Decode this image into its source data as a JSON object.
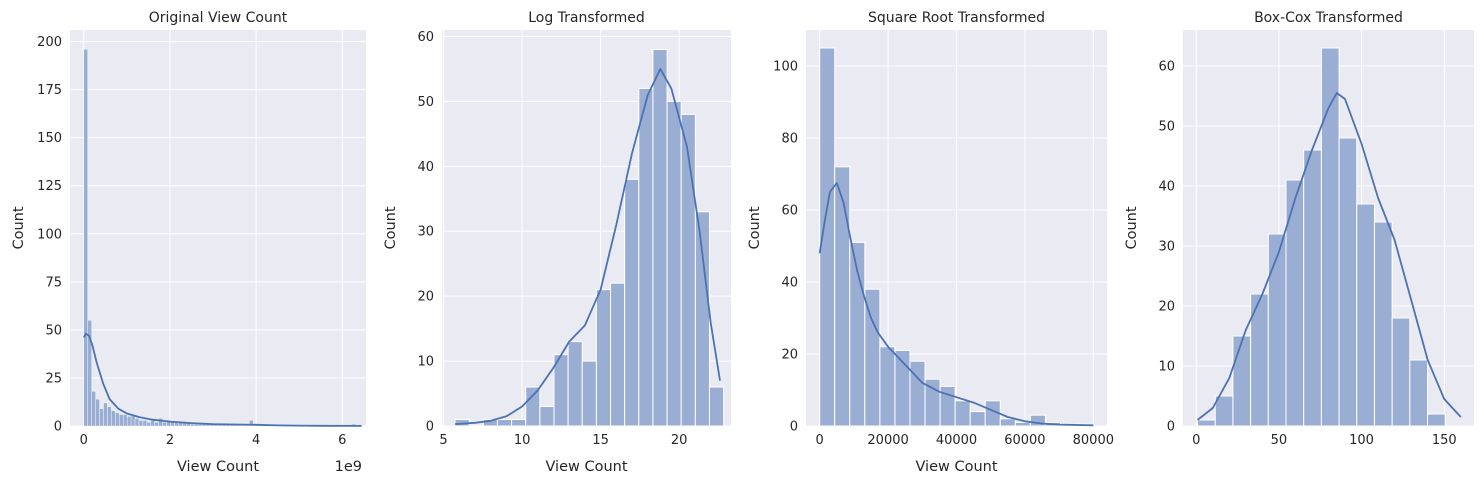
{
  "chart_data": [
    {
      "type": "bar",
      "title": "Original View Count",
      "xlabel": "View Count",
      "ylabel": "Count",
      "offset_text": "1e9",
      "xlim": [
        -0.32,
        6.55
      ],
      "ylim": [
        0,
        206
      ],
      "xticks": [
        0,
        2,
        4,
        6
      ],
      "xtick_labels": [
        "0",
        "2",
        "4",
        "6"
      ],
      "yticks": [
        0,
        25,
        50,
        75,
        100,
        125,
        150,
        175,
        200
      ],
      "bin_edges_start": 0,
      "bin_width": 0.0915,
      "values": [
        196,
        55,
        18,
        14,
        9,
        12,
        10,
        8,
        7,
        6,
        6,
        5,
        6,
        4,
        3,
        3,
        2,
        3,
        2,
        4,
        2,
        3,
        2,
        2,
        2,
        2,
        2,
        1,
        1,
        1,
        1,
        1,
        1,
        1,
        1,
        1,
        1,
        1,
        1,
        1,
        1,
        1,
        3,
        1,
        0,
        1,
        0,
        0,
        0,
        0,
        0,
        0,
        0,
        0,
        0,
        0,
        0,
        0,
        0,
        0,
        0,
        0,
        0,
        0,
        0,
        0,
        0,
        0,
        1
      ],
      "kde": [
        [
          0,
          46
        ],
        [
          0.05,
          48
        ],
        [
          0.12,
          47
        ],
        [
          0.2,
          42
        ],
        [
          0.3,
          33
        ],
        [
          0.45,
          22
        ],
        [
          0.6,
          14
        ],
        [
          0.8,
          9
        ],
        [
          1,
          6.5
        ],
        [
          1.3,
          4.5
        ],
        [
          1.6,
          3.3
        ],
        [
          2,
          2.3
        ],
        [
          2.5,
          1.5
        ],
        [
          3,
          1
        ],
        [
          3.5,
          0.8
        ],
        [
          4,
          0.6
        ],
        [
          4.5,
          0.3
        ],
        [
          5,
          0.2
        ],
        [
          5.5,
          0.1
        ],
        [
          6.45,
          0.05
        ]
      ]
    },
    {
      "type": "bar",
      "title": "Log Transformed",
      "xlabel": "View Count",
      "ylabel": "Count",
      "xlim": [
        4.9,
        23.3
      ],
      "ylim": [
        0,
        61
      ],
      "xticks": [
        5,
        10,
        15,
        20
      ],
      "xtick_labels": [
        "5",
        "10",
        "15",
        "20"
      ],
      "yticks": [
        0,
        10,
        20,
        30,
        40,
        50,
        60
      ],
      "bin_edges_start": 5.73,
      "bin_width": 0.9,
      "values": [
        1,
        0,
        1,
        1,
        1,
        6,
        3,
        11,
        13,
        10,
        21,
        22,
        38,
        52,
        58,
        50,
        48,
        33,
        6
      ],
      "kde": [
        [
          5.73,
          0.3
        ],
        [
          7,
          0.5
        ],
        [
          8,
          0.8
        ],
        [
          9,
          1.5
        ],
        [
          10,
          3
        ],
        [
          11,
          5.5
        ],
        [
          12,
          9
        ],
        [
          13,
          13
        ],
        [
          14,
          15.5
        ],
        [
          15,
          21
        ],
        [
          16,
          31
        ],
        [
          17,
          42
        ],
        [
          18,
          51
        ],
        [
          18.8,
          55
        ],
        [
          19.5,
          52
        ],
        [
          20.5,
          43
        ],
        [
          21.3,
          30
        ],
        [
          22,
          16
        ],
        [
          22.6,
          7
        ]
      ]
    },
    {
      "type": "bar",
      "title": "Square Root Transformed",
      "xlabel": "View Count",
      "ylabel": "Count",
      "xlim": [
        -4000,
        84000
      ],
      "ylim": [
        0,
        110
      ],
      "xticks": [
        0,
        20000,
        40000,
        60000,
        80000
      ],
      "xtick_labels": [
        "0",
        "20000",
        "40000",
        "60000",
        "80000"
      ],
      "yticks": [
        0,
        20,
        40,
        60,
        80,
        100
      ],
      "bin_edges_start": 0,
      "bin_width": 4400,
      "values": [
        105,
        72,
        51,
        38,
        22,
        21,
        18,
        13,
        11,
        7,
        4,
        7,
        2,
        1,
        3,
        1,
        0,
        0.5
      ],
      "kde": [
        [
          0,
          48
        ],
        [
          1500,
          57
        ],
        [
          3000,
          65
        ],
        [
          5000,
          67.5
        ],
        [
          7000,
          62
        ],
        [
          9000,
          52
        ],
        [
          11000,
          43
        ],
        [
          13000,
          36
        ],
        [
          15000,
          30
        ],
        [
          17000,
          26
        ],
        [
          20000,
          22
        ],
        [
          25000,
          17
        ],
        [
          30000,
          12
        ],
        [
          35000,
          9.5
        ],
        [
          40000,
          8
        ],
        [
          45000,
          6.5
        ],
        [
          50000,
          4.5
        ],
        [
          55000,
          2.5
        ],
        [
          60000,
          1.3
        ],
        [
          65000,
          0.7
        ],
        [
          70000,
          0.4
        ],
        [
          80000,
          0.2
        ]
      ]
    },
    {
      "type": "bar",
      "title": "Box-Cox Transformed",
      "xlabel": "",
      "ylabel": "Count",
      "xlim": [
        -8,
        168
      ],
      "ylim": [
        0,
        66
      ],
      "xticks": [
        0,
        50,
        100,
        150
      ],
      "xtick_labels": [
        "0",
        "50",
        "100",
        "150"
      ],
      "yticks": [
        0,
        10,
        20,
        30,
        40,
        50,
        60
      ],
      "bin_edges_start": 0.8,
      "bin_width": 10.7,
      "values": [
        1,
        5,
        15,
        22,
        32,
        41,
        46,
        63,
        48,
        37,
        34,
        18,
        11,
        2
      ],
      "kde": [
        [
          0.8,
          1
        ],
        [
          10,
          3
        ],
        [
          20,
          8
        ],
        [
          30,
          16
        ],
        [
          40,
          22
        ],
        [
          50,
          29
        ],
        [
          60,
          38
        ],
        [
          70,
          46
        ],
        [
          80,
          53
        ],
        [
          85,
          55.5
        ],
        [
          90,
          54.5
        ],
        [
          100,
          47
        ],
        [
          110,
          38
        ],
        [
          120,
          31
        ],
        [
          130,
          21
        ],
        [
          140,
          11
        ],
        [
          150,
          4.5
        ],
        [
          160,
          1.5
        ]
      ]
    }
  ],
  "colors": {
    "bar_fill": "#9aaed4",
    "bar_stroke": "#ffffff",
    "kde_line": "#4c72b0",
    "plot_bg": "#eaeaf2",
    "grid": "#ffffff",
    "text": "#262626"
  }
}
